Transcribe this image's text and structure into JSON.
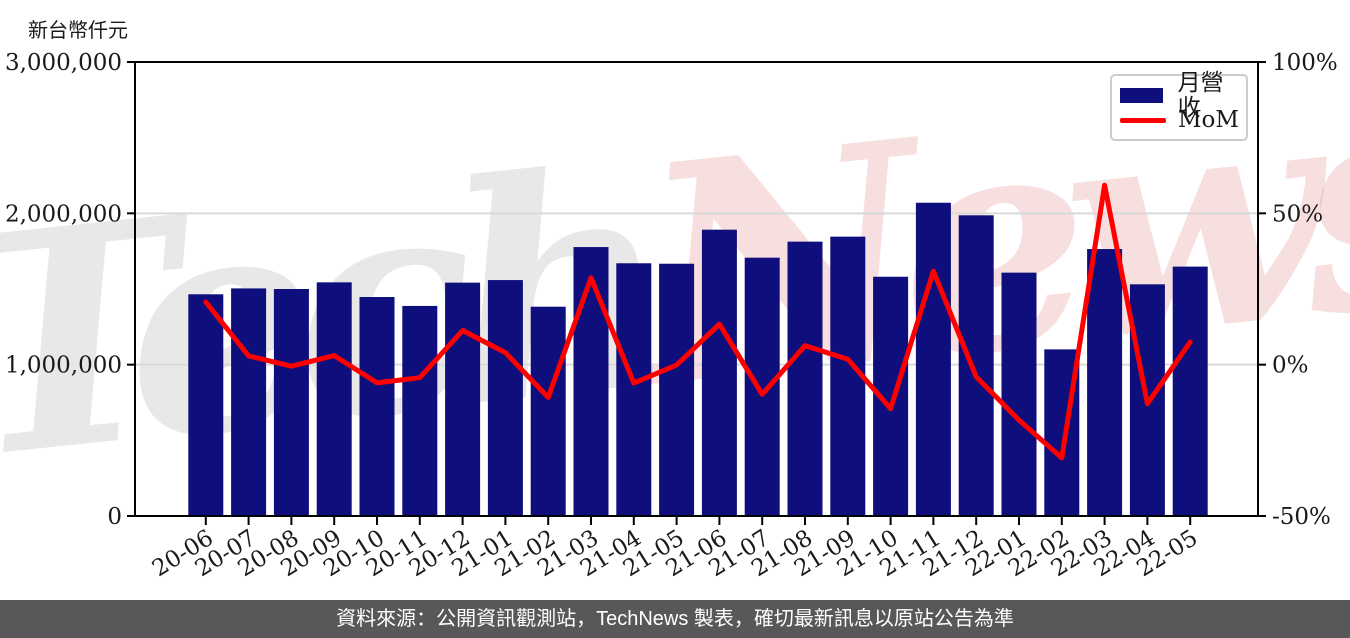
{
  "watermark": {
    "part1": "Tech",
    "part2": "News"
  },
  "footer": {
    "text": "資料來源：公開資訊觀測站，TechNews 製表，確切最新訊息以原站公告為準",
    "background": "#58585a"
  },
  "chart_data": {
    "type": "bar+line combo",
    "title": "",
    "ylabel": "新台幣仟元",
    "categories": [
      "20-06",
      "20-07",
      "20-08",
      "20-09",
      "20-10",
      "20-11",
      "20-12",
      "21-01",
      "21-02",
      "21-03",
      "21-04",
      "21-05",
      "21-06",
      "21-07",
      "21-08",
      "21-09",
      "21-10",
      "21-11",
      "21-12",
      "22-01",
      "22-02",
      "22-03",
      "22-04",
      "22-05"
    ],
    "series": [
      {
        "name": "月營收",
        "type": "bar",
        "axis": "left",
        "color": "#0e0e7c",
        "values": [
          1465000,
          1504000,
          1500000,
          1544000,
          1447000,
          1388000,
          1542000,
          1559000,
          1383000,
          1777000,
          1670000,
          1667000,
          1892000,
          1707000,
          1813000,
          1846000,
          1581000,
          2070000,
          1987000,
          1608000,
          1101000,
          1764000,
          1531000,
          1648000
        ]
      },
      {
        "name": "MoM",
        "type": "line",
        "axis": "right",
        "color": "#ff0000",
        "values": [
          20.7,
          2.9,
          -0.5,
          3.0,
          -6.0,
          -4.3,
          11.3,
          4.0,
          -10.8,
          28.7,
          -6.1,
          -0.1,
          13.4,
          -9.8,
          6.3,
          1.8,
          -14.5,
          30.9,
          -4.0,
          -18.3,
          -30.8,
          59.3,
          -12.9,
          7.5
        ]
      }
    ],
    "left_axis": {
      "min": 0,
      "max": 3000000,
      "ticks": [
        0,
        1000000,
        2000000,
        3000000
      ],
      "tick_labels": [
        "0",
        "1,000,000",
        "2,000,000",
        "3,000,000"
      ]
    },
    "right_axis": {
      "min": -50,
      "max": 100,
      "ticks": [
        -50,
        0,
        50,
        100
      ],
      "tick_labels": [
        "-50%",
        "0%",
        "50%",
        "100%"
      ]
    },
    "grid": {
      "horizontal_at": [
        1000000,
        2000000
      ],
      "color": "#d9d9d9"
    },
    "legend_position": "top-right",
    "spine_color": "#000000"
  }
}
